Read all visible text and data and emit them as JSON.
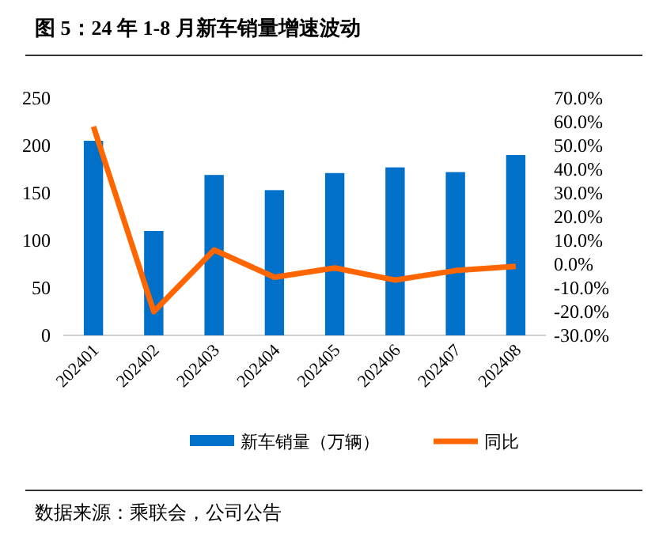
{
  "chart_data": {
    "type": "bar",
    "title": "图 5：24 年 1-8 月新车销量增速波动",
    "categories": [
      "202401",
      "202402",
      "202403",
      "202404",
      "202405",
      "202406",
      "202407",
      "202408"
    ],
    "series": [
      {
        "name": "新车销量（万辆）",
        "color": "#0070c8",
        "values": [
          205,
          110,
          169,
          153,
          171,
          177,
          172,
          190
        ]
      },
      {
        "name": "同比",
        "type": "line",
        "axis": "y2",
        "color": "#ff6600",
        "values": [
          58,
          -20,
          6,
          -5.5,
          -1.6,
          -6.7,
          -2.7,
          -0.9
        ]
      }
    ],
    "ylim": [
      0,
      250
    ],
    "yticks": [
      0,
      50,
      100,
      150,
      200,
      250
    ],
    "y2lim": [
      -30,
      70
    ],
    "y2ticks": [
      {
        "value": -30,
        "label": "-30.0%"
      },
      {
        "value": -20,
        "label": "-20.0%"
      },
      {
        "value": -10,
        "label": "-10.0%"
      },
      {
        "value": 0,
        "label": "0.0%"
      },
      {
        "value": 10,
        "label": "10.0%"
      },
      {
        "value": 20,
        "label": "20.0%"
      },
      {
        "value": 30,
        "label": "30.0%"
      },
      {
        "value": 40,
        "label": "40.0%"
      },
      {
        "value": 50,
        "label": "50.0%"
      },
      {
        "value": 60,
        "label": "60.0%"
      },
      {
        "value": 70,
        "label": "70.0%"
      }
    ],
    "legend": "bottom",
    "grid": false,
    "annotations": [
      "数据来源：乘联会，公司公告"
    ]
  }
}
